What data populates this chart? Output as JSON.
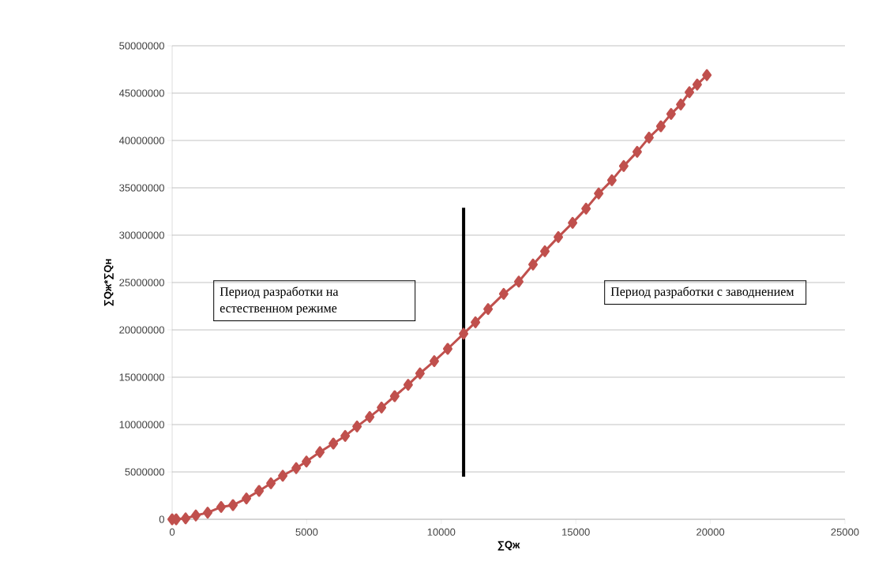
{
  "chart_data": {
    "type": "line",
    "xlabel": "∑Qж",
    "ylabel": "∑Qж*∑Qн",
    "series": [
      {
        "color": "#c0504d",
        "marker": "diamond",
        "x": [
          0,
          150,
          500,
          880,
          1320,
          1820,
          2260,
          2760,
          3230,
          3670,
          4110,
          4610,
          4990,
          5490,
          5990,
          6430,
          6870,
          7340,
          7780,
          8270,
          8770,
          9210,
          9740,
          10240,
          10830,
          11270,
          11740,
          12320,
          12880,
          13410,
          13850,
          14350,
          14880,
          15380,
          15850,
          16340,
          16780,
          17280,
          17720,
          18160,
          18540,
          18900,
          19220,
          19510,
          19870
        ],
        "values": [
          0,
          0,
          100000,
          400000,
          700000,
          1300000,
          1500000,
          2200000,
          3000000,
          3800000,
          4600000,
          5400000,
          6100000,
          7100000,
          8000000,
          8800000,
          9800000,
          10800000,
          11800000,
          13000000,
          14200000,
          15400000,
          16700000,
          18000000,
          19600000,
          20800000,
          22200000,
          23800000,
          25100000,
          26900000,
          28300000,
          29800000,
          31300000,
          32800000,
          34400000,
          35800000,
          37300000,
          38800000,
          40300000,
          41500000,
          42800000,
          43800000,
          45100000,
          45900000,
          46900000
        ]
      },
      {
        "color": "#000000",
        "marker": "none",
        "x": [
          10830,
          10830
        ],
        "values": [
          4500000,
          32900000
        ]
      }
    ],
    "xlim": [
      0,
      25000
    ],
    "xticks": [
      0,
      5000,
      10000,
      15000,
      20000,
      25000
    ],
    "ylim": [
      0,
      50000000
    ],
    "yticks": [
      0,
      5000000,
      10000000,
      15000000,
      20000000,
      25000000,
      30000000,
      35000000,
      40000000,
      45000000,
      50000000
    ],
    "grid": "y",
    "annotations": [
      "Период разработки на естественном режиме",
      "Период разработки с заводнением"
    ]
  }
}
